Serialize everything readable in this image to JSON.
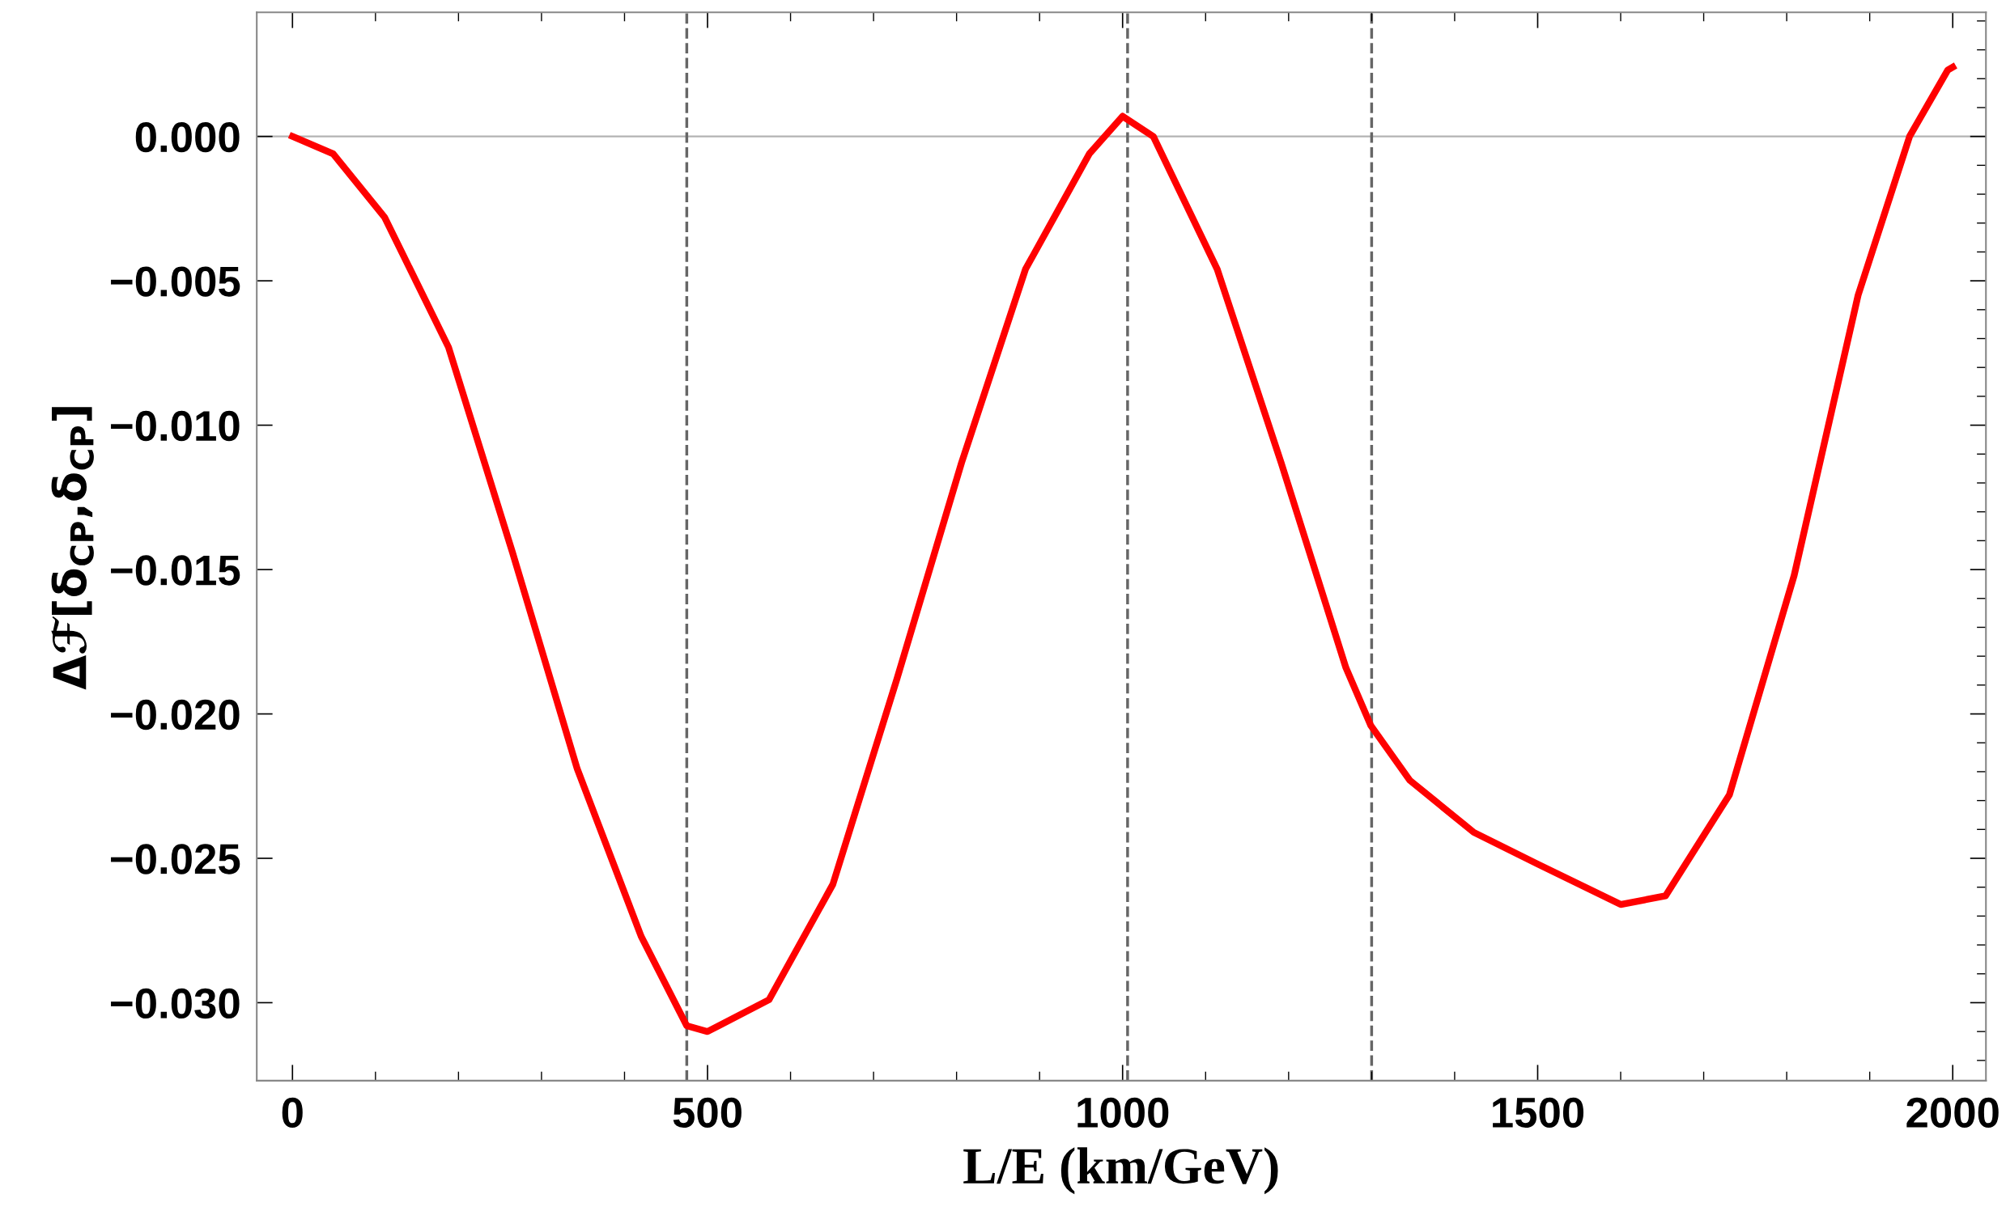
{
  "chart_data": {
    "type": "line",
    "xlabel": "L/E (km/GeV)",
    "ylabel": "Δℱ[δ$_{CP}$,δ$_{CP}$]",
    "series": [
      {
        "color": "#ff0000",
        "x": [
          0,
          49,
          111,
          188,
          265,
          343,
          420,
          475,
          500,
          574,
          651,
          728,
          806,
          883,
          960,
          1000,
          1037,
          1114,
          1191,
          1269,
          1299,
          1346,
          1423,
          1500,
          1600,
          1654,
          1731,
          1809,
          1886,
          1948,
          1994,
          2000
        ],
        "values": [
          0,
          -0.0006,
          -0.0028,
          -0.0073,
          -0.0144,
          -0.0219,
          -0.0277,
          -0.0308,
          -0.031,
          -0.0299,
          -0.0259,
          -0.0188,
          -0.0113,
          -0.0046,
          -0.0006,
          0.0007,
          0.0,
          -0.0046,
          -0.0113,
          -0.0184,
          -0.0204,
          -0.0223,
          -0.0241,
          -0.0252,
          -0.0266,
          -0.0263,
          -0.0228,
          -0.0152,
          -0.0055,
          0.0,
          0.0023,
          0.0024
        ]
      }
    ],
    "xlim": [
      -43,
      2040
    ],
    "ylim": [
      -0.0327,
      0.0043
    ],
    "xticks": [
      0,
      500,
      1000,
      1500,
      2000
    ],
    "yticks": [
      {
        "value": 0,
        "label": "0.000"
      },
      {
        "value": -0.005,
        "label": "−0.005"
      },
      {
        "value": -0.01,
        "label": "−0.010"
      },
      {
        "value": -0.015,
        "label": "−0.015"
      },
      {
        "value": -0.02,
        "label": "−0.020"
      },
      {
        "value": -0.025,
        "label": "−0.025"
      },
      {
        "value": -0.03,
        "label": "−0.030"
      }
    ],
    "ref_lines": [
      {
        "axis": "y",
        "value": 0,
        "color": "#b3b3b3",
        "line_style": "solid"
      },
      {
        "axis": "x",
        "value": 475,
        "color": "#666666",
        "line_style": "dashed"
      },
      {
        "axis": "x",
        "value": 1006,
        "color": "#666666",
        "line_style": "dashed"
      },
      {
        "axis": "x",
        "value": 1300,
        "color": "#666666",
        "line_style": "dashed"
      }
    ],
    "grid": false,
    "legend": false,
    "marker": "none",
    "line_style": "solid"
  }
}
